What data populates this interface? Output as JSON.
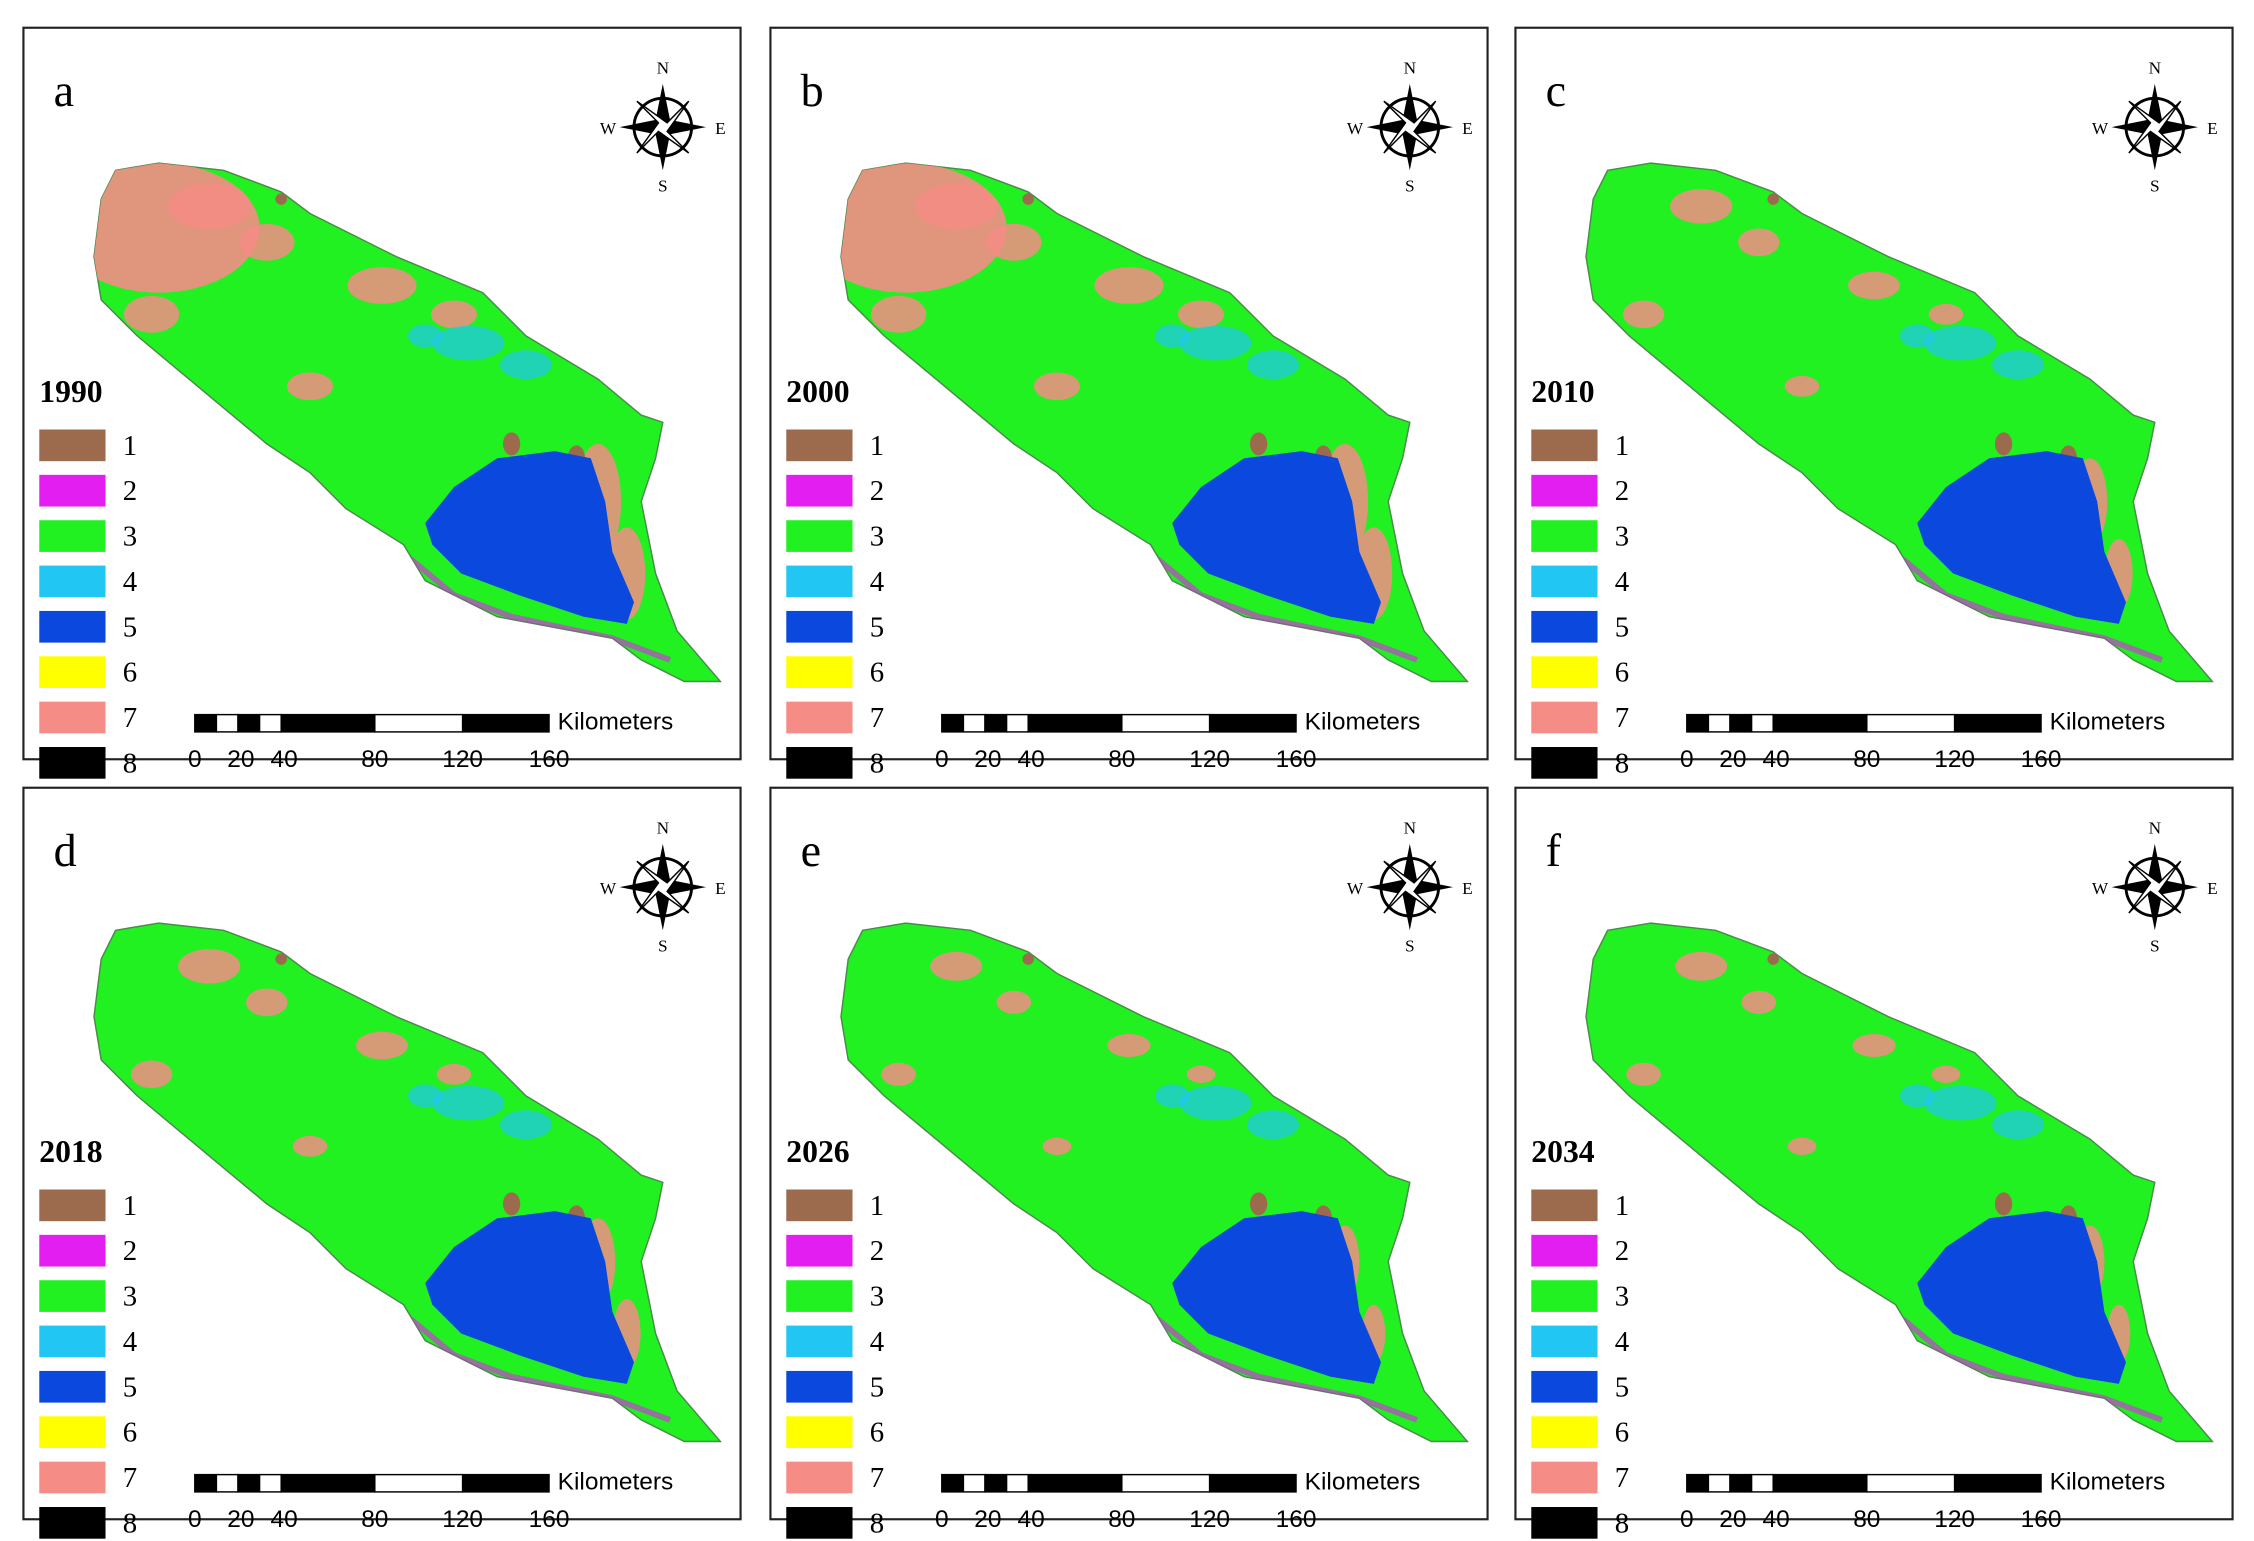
{
  "panels": [
    {
      "letter": "a",
      "year": "1990"
    },
    {
      "letter": "b",
      "year": "2000"
    },
    {
      "letter": "c",
      "year": "2010"
    },
    {
      "letter": "d",
      "year": "2018"
    },
    {
      "letter": "e",
      "year": "2026"
    },
    {
      "letter": "f",
      "year": "2034"
    }
  ],
  "legend": {
    "labels": [
      "1",
      "2",
      "3",
      "4",
      "5",
      "6",
      "7",
      "8"
    ],
    "colors": [
      "#9c6b4e",
      "#e21ff0",
      "#21f021",
      "#21c6f3",
      "#0b49de",
      "#ffff00",
      "#f58c86",
      "#000000"
    ]
  },
  "compass": {
    "n": "N",
    "s": "S",
    "e": "E",
    "w": "W"
  },
  "scale_bar": {
    "ticks": [
      "0",
      "20",
      "40",
      "80",
      "120",
      "160"
    ],
    "unit": "Kilometers"
  }
}
